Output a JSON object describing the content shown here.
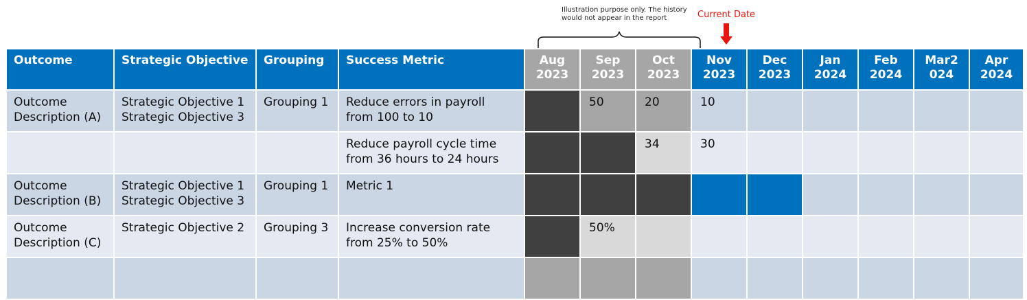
{
  "annotation": {
    "note_line1": "Illustration purpose only. The history",
    "note_line2": "would not appear in the report",
    "current_date_label": "Current Date"
  },
  "colors": {
    "header_blue": "#0071bc",
    "history_header_gray": "#a6a6a6",
    "row_dark": "#cbd6e5",
    "row_light": "#e5eaf2",
    "history_black": "#404040",
    "history_mid_gray": "#a6a6a6",
    "history_pale_gray": "#d9d9d9",
    "status_blue": "#0071bc",
    "current_date_red": "#e8140f"
  },
  "table": {
    "headers": {
      "outcome": "Outcome",
      "objective": "Strategic Objective",
      "grouping": "Grouping",
      "metric": "Success Metric",
      "months": [
        "Aug\n2023",
        "Sep\n2023",
        "Oct\n2023",
        "Nov\n2023",
        "Dec\n2023",
        "Jan\n2024",
        "Feb\n2024",
        "Mar2\n024",
        "Apr\n2024"
      ]
    },
    "rows": [
      {
        "outcome": "Outcome\nDescription (A)",
        "objective": "Strategic Objective 1\nStrategic Objective 3",
        "grouping": "Grouping 1",
        "metric": "Reduce errors in payroll\nfrom 100 to 10",
        "months": [
          "",
          "50",
          "20",
          "10",
          "",
          "",
          "",
          "",
          ""
        ]
      },
      {
        "outcome": "",
        "objective": "",
        "grouping": "",
        "metric": "Reduce payroll cycle time\nfrom 36 hours to 24 hours",
        "months": [
          "",
          "",
          "34",
          "30",
          "",
          "",
          "",
          "",
          ""
        ]
      },
      {
        "outcome": "Outcome\nDescription (B)",
        "objective": "Strategic Objective 1\nStrategic Objective 3",
        "grouping": "Grouping 1",
        "metric": "Metric 1",
        "months": [
          "",
          "",
          "",
          "",
          "",
          "",
          "",
          "",
          ""
        ]
      },
      {
        "outcome": "Outcome\nDescription (C)",
        "objective": "Strategic Objective 2",
        "grouping": "Grouping 3",
        "metric": "Increase conversion rate\nfrom 25% to 50%",
        "months": [
          "",
          "50%",
          "",
          "",
          "",
          "",
          "",
          "",
          ""
        ]
      },
      {
        "outcome": "",
        "objective": "",
        "grouping": "",
        "metric": "",
        "months": [
          "",
          "",
          "",
          "",
          "",
          "",
          "",
          "",
          ""
        ]
      }
    ]
  }
}
